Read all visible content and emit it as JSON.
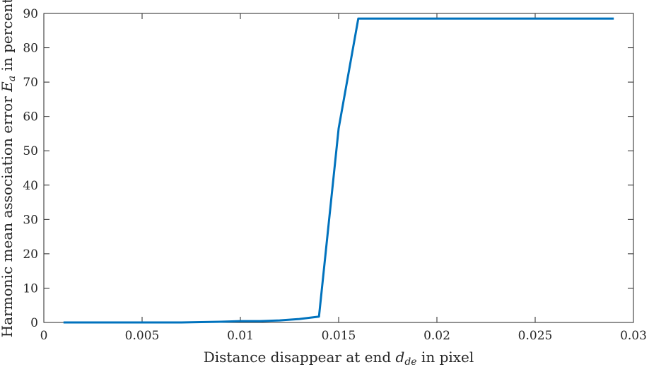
{
  "chart_data": {
    "type": "line",
    "title": "",
    "xlabel": "Distance disappear at end d_de in pixel",
    "ylabel": "Harmonic mean association error E_a in percent",
    "xlabel_parts": {
      "before": "Distance disappear at end ",
      "var": "d",
      "sub": "de",
      "after": " in pixel"
    },
    "ylabel_parts": {
      "before": "Harmonic mean association error ",
      "var": "E",
      "sub": "a",
      "after": " in percent"
    },
    "xlim": [
      0,
      0.03
    ],
    "ylim": [
      0,
      90
    ],
    "x_ticks": [
      0,
      0.005,
      0.01,
      0.015,
      0.02,
      0.025,
      0.03
    ],
    "x_tick_labels": [
      "0",
      "0.005",
      "0.01",
      "0.015",
      "0.02",
      "0.025",
      "0.03"
    ],
    "y_ticks": [
      0,
      10,
      20,
      30,
      40,
      50,
      60,
      70,
      80,
      90
    ],
    "y_tick_labels": [
      "0",
      "10",
      "20",
      "30",
      "40",
      "50",
      "60",
      "70",
      "80",
      "90"
    ],
    "grid": false,
    "line_color": "#0072BD",
    "series": [
      {
        "x": [
          0.001,
          0.002,
          0.003,
          0.004,
          0.005,
          0.006,
          0.007,
          0.008,
          0.009,
          0.01,
          0.011,
          0.012,
          0.013,
          0.014,
          0.015,
          0.016,
          0.017,
          0.018,
          0.019,
          0.02,
          0.021,
          0.022,
          0.023,
          0.024,
          0.025,
          0.026,
          0.027,
          0.028,
          0.029
        ],
        "y": [
          0,
          0,
          0,
          0,
          0,
          0,
          0,
          0.1,
          0.2,
          0.4,
          0.4,
          0.6,
          1.0,
          1.7,
          56.5,
          88.5,
          88.5,
          88.5,
          88.5,
          88.5,
          88.5,
          88.5,
          88.5,
          88.5,
          88.5,
          88.5,
          88.5,
          88.5,
          88.5
        ]
      }
    ]
  }
}
